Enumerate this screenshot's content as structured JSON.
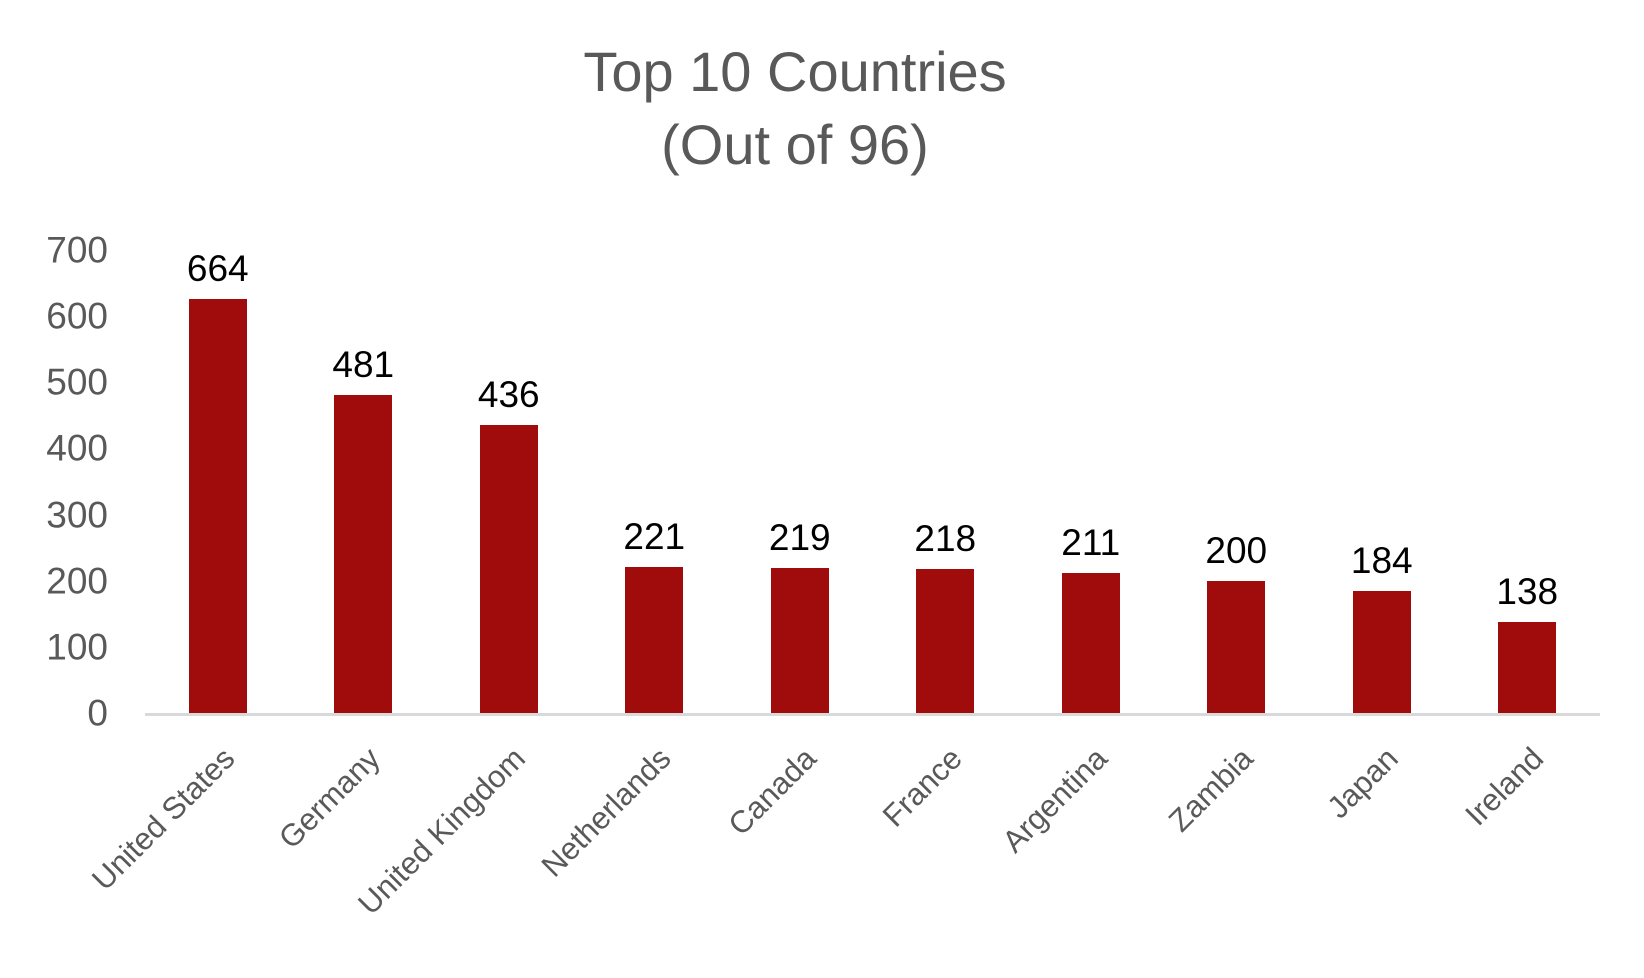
{
  "chart": {
    "title_line1": "Top 10 Countries",
    "title_line2": "(Out of 96)"
  },
  "chart_data": {
    "type": "bar",
    "title": "Top 10 Countries (Out of 96)",
    "categories": [
      "United States",
      "Germany",
      "United Kingdom",
      "Netherlands",
      "Canada",
      "France",
      "Argentina",
      "Zambia",
      "Japan",
      "Ireland"
    ],
    "values": [
      664,
      481,
      436,
      221,
      219,
      218,
      211,
      200,
      184,
      138
    ],
    "xlabel": "",
    "ylabel": "",
    "ylim": [
      0,
      700
    ],
    "yticks": [
      0,
      100,
      200,
      300,
      400,
      500,
      600,
      700
    ],
    "grid": false,
    "legend": "none",
    "data_labels": true,
    "x_label_rotation_deg": 45,
    "bar_color": "#A00B0B",
    "axis_line_color": "#D9D9D9",
    "tick_label_color": "#595959",
    "category_label_color": "#595959",
    "data_label_color": "#000000",
    "title_color": "#595959"
  }
}
